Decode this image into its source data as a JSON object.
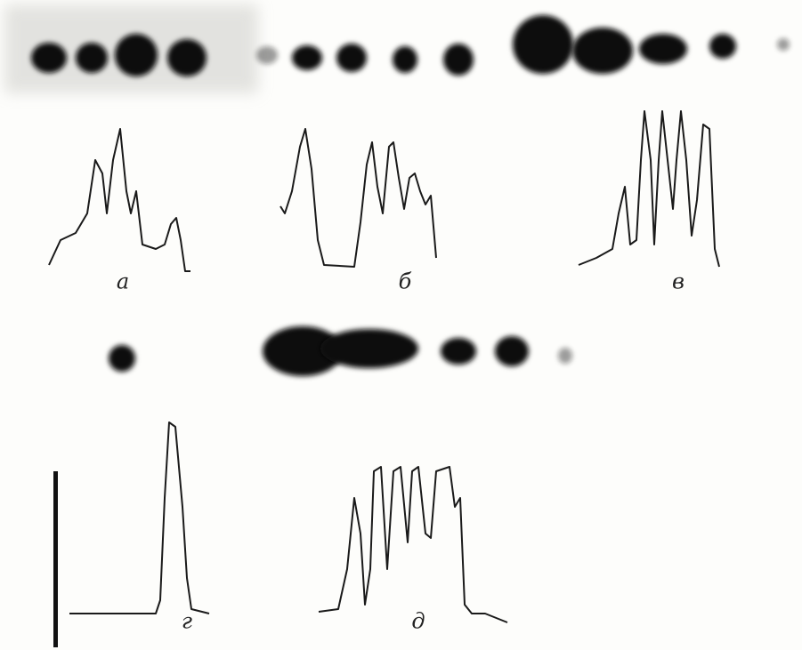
{
  "panels": [
    {
      "label": "а"
    },
    {
      "label": "б"
    },
    {
      "label": "в"
    },
    {
      "label": "г"
    },
    {
      "label": "д"
    }
  ]
}
